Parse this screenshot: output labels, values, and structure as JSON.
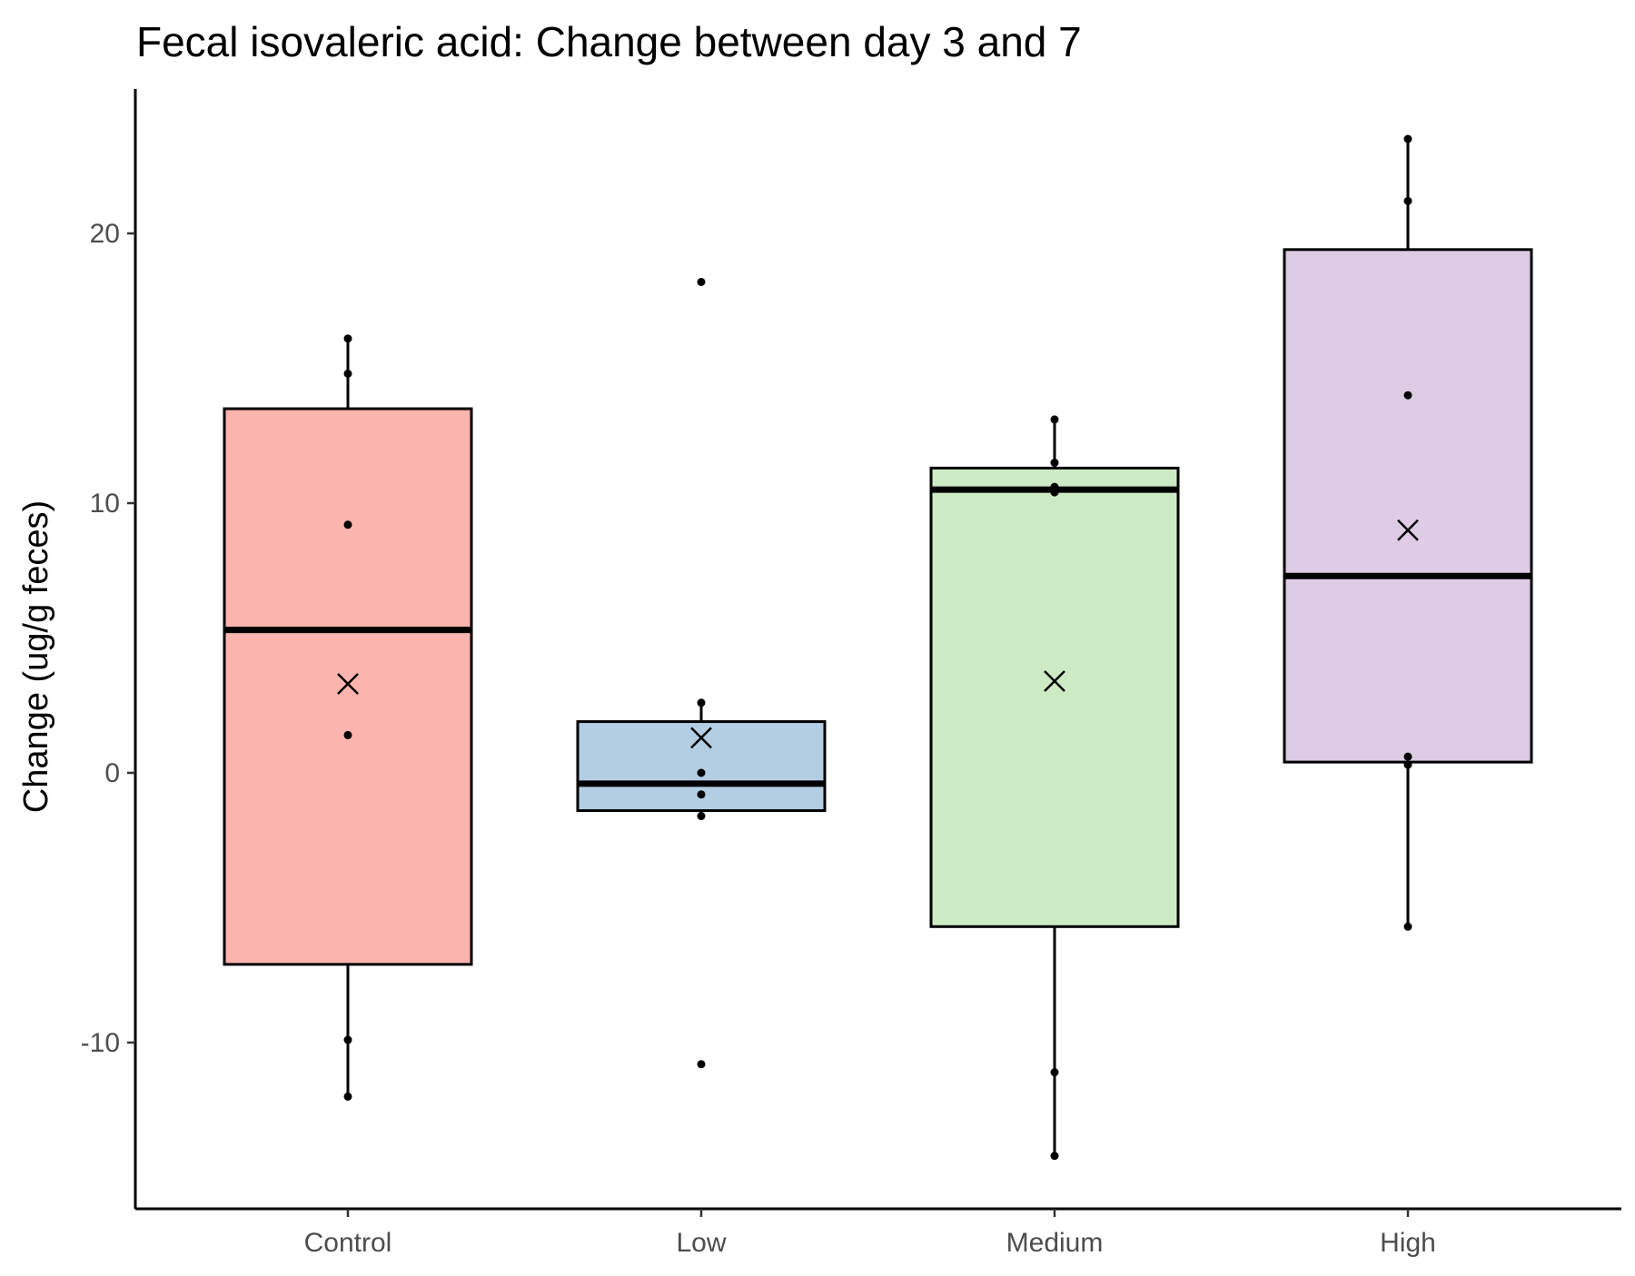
{
  "chart_data": {
    "type": "box",
    "title": "Fecal isovaleric acid: Change between day 3 and 7",
    "xlabel": "",
    "ylabel": "Change (ug/g feces)",
    "ylim": [
      -16,
      25
    ],
    "yticks": [
      -10,
      0,
      10,
      20
    ],
    "ytick_labels": [
      "-10",
      "0",
      "10",
      "20"
    ],
    "grid": false,
    "legend": "none",
    "categories": [
      "Control",
      "Low",
      "Medium",
      "High"
    ],
    "colors": [
      "#fbb4ae",
      "#b3cde3",
      "#ccebc5",
      "#decbe4"
    ],
    "boxes": [
      {
        "group": "Control",
        "whisker_low": -12.0,
        "q1": -7.1,
        "median": 5.3,
        "q3": 13.5,
        "whisker_high": 16.1,
        "mean": 3.3,
        "points": [
          16.1,
          14.8,
          9.2,
          1.4,
          -9.9,
          -12.0
        ]
      },
      {
        "group": "Low",
        "whisker_low": -1.6,
        "q1": -1.4,
        "median": -0.4,
        "q3": 1.9,
        "whisker_high": 2.6,
        "mean": 1.3,
        "points": [
          18.2,
          2.6,
          0.0,
          -0.8,
          -1.6,
          -10.8
        ]
      },
      {
        "group": "Medium",
        "whisker_low": -14.2,
        "q1": -5.7,
        "median": 10.5,
        "q3": 11.3,
        "whisker_high": 13.1,
        "mean": 3.4,
        "points": [
          13.1,
          11.5,
          10.6,
          10.4,
          -11.1,
          -14.2
        ]
      },
      {
        "group": "High",
        "whisker_low": -5.7,
        "q1": 0.4,
        "median": 7.3,
        "q3": 19.4,
        "whisker_high": 23.5,
        "mean": 9.0,
        "points": [
          23.5,
          21.2,
          14.0,
          0.6,
          0.3,
          -5.7
        ]
      }
    ]
  }
}
